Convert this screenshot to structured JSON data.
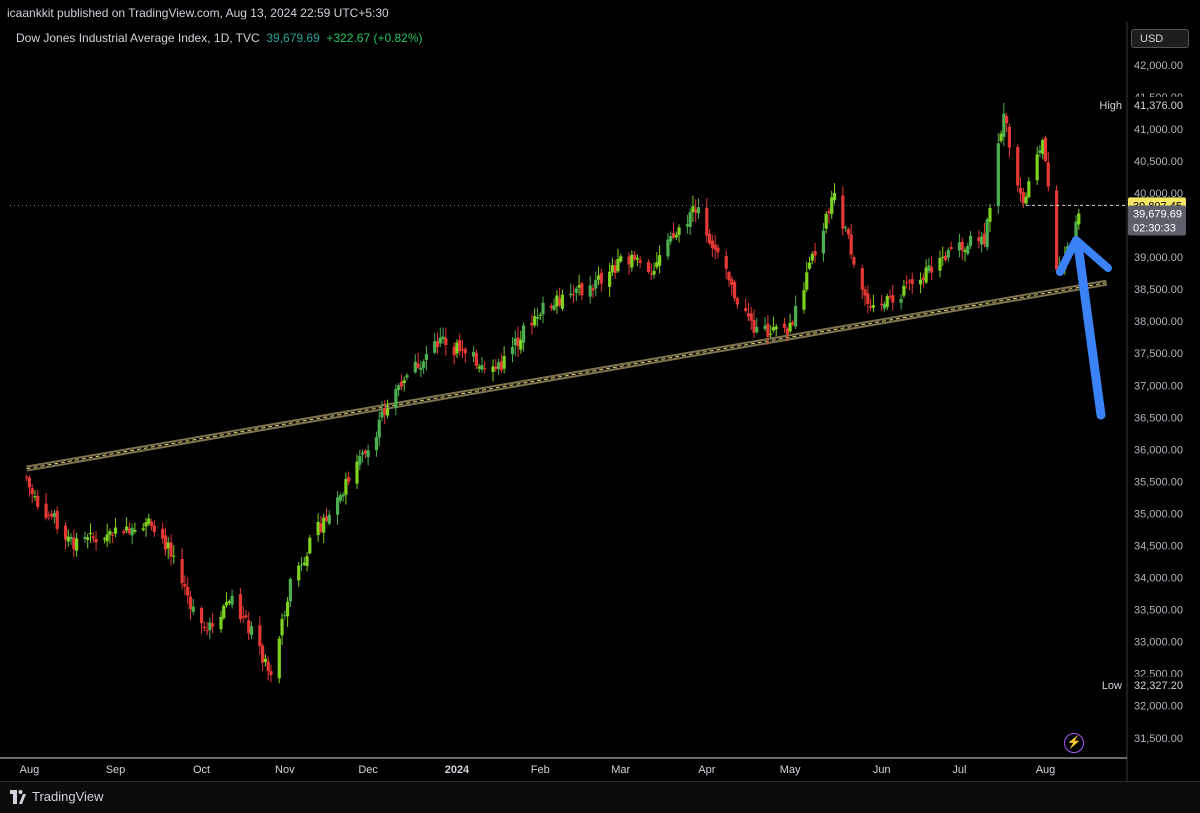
{
  "header": {
    "publisher_line": "icaankkit published on TradingView.com, Aug 13, 2024 22:59 UTC+5:30"
  },
  "legend": {
    "symbol": "Dow Jones Industrial Average Index, 1D, TVC",
    "price": "39,679.69",
    "change": "+322.67 (+0.82%)"
  },
  "currency": "USD",
  "footer": {
    "brand": "TradingView"
  },
  "price_axis": {
    "high_label": "High",
    "high_value": "41,376.00",
    "low_label": "Low",
    "low_value": "32,327.20",
    "last_value": "39,807.45",
    "current_value": "39,679.69",
    "countdown": "02:30:33"
  },
  "colors": {
    "up": "#4caf50",
    "up_bright": "#7ed321",
    "down": "#e53935",
    "trendline": "#e8d48a",
    "arrow": "#3b82f6",
    "last_badge": "#f5e663",
    "current_badge": "#5d606b"
  },
  "chart_data": {
    "type": "candlestick",
    "title": "Dow Jones Industrial Average Index, 1D, TVC",
    "ylim": [
      31200,
      42200
    ],
    "yticks": [
      31500,
      32000,
      32500,
      33000,
      33500,
      34000,
      34500,
      35000,
      35500,
      36000,
      36500,
      37000,
      37500,
      38000,
      38500,
      39000,
      39500,
      40000,
      40500,
      41000,
      41500,
      42000
    ],
    "ytick_labels": [
      "31,500.00",
      "32,000.00",
      "32,500.00",
      "33,000.00",
      "33,500.00",
      "34,000.00",
      "34,500.00",
      "35,000.00",
      "35,500.00",
      "36,000.00",
      "36,500.00",
      "37,000.00",
      "37,500.00",
      "38,000.00",
      "38,500.00",
      "39,000.00",
      "39,500.00",
      "40,000.00",
      "40,500.00",
      "41,000.00",
      "41,500.00",
      "42,000.00"
    ],
    "xticks": [
      {
        "label": "Aug",
        "date": "2023-08-01",
        "bold": false
      },
      {
        "label": "Sep",
        "date": "2023-09-01",
        "bold": false
      },
      {
        "label": "Oct",
        "date": "2023-10-02",
        "bold": false
      },
      {
        "label": "Nov",
        "date": "2023-11-01",
        "bold": false
      },
      {
        "label": "Dec",
        "date": "2023-12-01",
        "bold": false
      },
      {
        "label": "2024",
        "date": "2024-01-02",
        "bold": true
      },
      {
        "label": "Feb",
        "date": "2024-02-01",
        "bold": false
      },
      {
        "label": "Mar",
        "date": "2024-03-01",
        "bold": false
      },
      {
        "label": "Apr",
        "date": "2024-04-01",
        "bold": false
      },
      {
        "label": "May",
        "date": "2024-05-01",
        "bold": false
      },
      {
        "label": "Jun",
        "date": "2024-06-03",
        "bold": false
      },
      {
        "label": "Jul",
        "date": "2024-07-01",
        "bold": false
      },
      {
        "label": "Aug",
        "date": "2024-08-01",
        "bold": false
      }
    ],
    "close_anchors": [
      {
        "date": "2023-07-31",
        "close": 35560
      },
      {
        "date": "2023-08-02",
        "close": 35280
      },
      {
        "date": "2023-08-18",
        "close": 34500
      },
      {
        "date": "2023-08-31",
        "close": 34720
      },
      {
        "date": "2023-09-14",
        "close": 34900
      },
      {
        "date": "2023-09-20",
        "close": 34450
      },
      {
        "date": "2023-09-29",
        "close": 33510
      },
      {
        "date": "2023-10-04",
        "close": 33130
      },
      {
        "date": "2023-10-12",
        "close": 33700
      },
      {
        "date": "2023-10-20",
        "close": 33130
      },
      {
        "date": "2023-10-27",
        "close": 32420
      },
      {
        "date": "2023-11-03",
        "close": 33950
      },
      {
        "date": "2023-11-14",
        "close": 34830
      },
      {
        "date": "2023-11-30",
        "close": 35950
      },
      {
        "date": "2023-12-13",
        "close": 37100
      },
      {
        "date": "2023-12-28",
        "close": 37720
      },
      {
        "date": "2024-01-05",
        "close": 37450
      },
      {
        "date": "2024-01-17",
        "close": 37260
      },
      {
        "date": "2024-01-31",
        "close": 38150
      },
      {
        "date": "2024-02-20",
        "close": 38560
      },
      {
        "date": "2024-03-04",
        "close": 39000
      },
      {
        "date": "2024-03-12",
        "close": 38800
      },
      {
        "date": "2024-03-28",
        "close": 39800
      },
      {
        "date": "2024-04-10",
        "close": 38500
      },
      {
        "date": "2024-04-19",
        "close": 37800
      },
      {
        "date": "2024-05-01",
        "close": 37900
      },
      {
        "date": "2024-05-17",
        "close": 40000
      },
      {
        "date": "2024-05-30",
        "close": 38100
      },
      {
        "date": "2024-06-14",
        "close": 38600
      },
      {
        "date": "2024-06-28",
        "close": 39100
      },
      {
        "date": "2024-07-10",
        "close": 39300
      },
      {
        "date": "2024-07-17",
        "close": 41200
      },
      {
        "date": "2024-07-24",
        "close": 39850
      },
      {
        "date": "2024-07-31",
        "close": 40840
      },
      {
        "date": "2024-08-05",
        "close": 38700
      },
      {
        "date": "2024-08-13",
        "close": 39680
      }
    ],
    "trendline": {
      "start": {
        "date": "2023-07-31",
        "value": 35700
      },
      "end": {
        "date": "2024-08-23",
        "value": 38600
      }
    },
    "last_close_line": 39807.45,
    "high": {
      "date": "2024-07-17",
      "value": 41376.0
    },
    "low": {
      "date": "2023-10-27",
      "value": 32327.2
    }
  }
}
